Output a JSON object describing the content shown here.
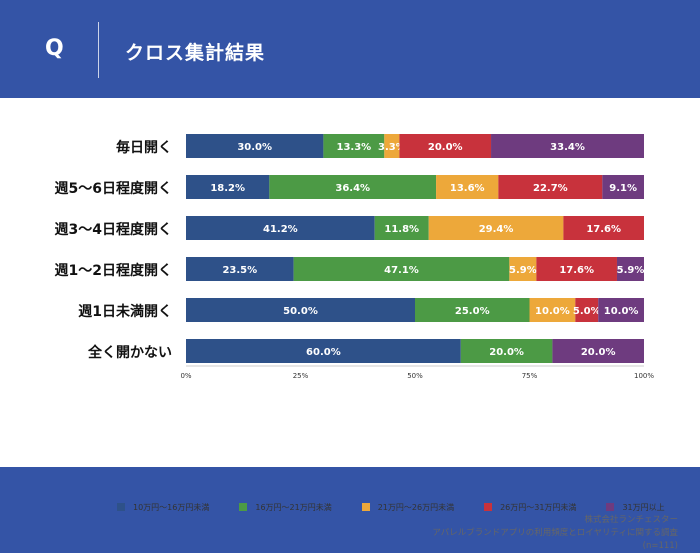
{
  "header": {
    "q_mark": "Q",
    "title": "クロス集計結果"
  },
  "footer": {
    "credit_lines": [
      "株式会社ランチェスター",
      "アパレルブランドアプリの利用頻度とロイヤリティに関する調査",
      "(n=111)"
    ]
  },
  "chart_data": {
    "type": "bar",
    "orientation": "horizontal",
    "stacked": true,
    "categories": [
      "毎日開く",
      "週5〜6日程度開く",
      "週3〜4日程度開く",
      "週1〜2日程度開く",
      "週1日未満開く",
      "全く開かない"
    ],
    "series": [
      {
        "name": "10万円〜16万円未満",
        "color": "#2e5189",
        "values": [
          30.0,
          18.2,
          41.2,
          23.5,
          50.0,
          60.0
        ]
      },
      {
        "name": "16万円〜21万円未満",
        "color": "#4c9a45",
        "values": [
          13.3,
          36.4,
          11.8,
          47.1,
          25.0,
          20.0
        ]
      },
      {
        "name": "21万円〜26万円未満",
        "color": "#eda83a",
        "values": [
          3.3,
          13.6,
          29.4,
          5.9,
          10.0,
          0
        ]
      },
      {
        "name": "26万円〜31万円未満",
        "color": "#c8323c",
        "values": [
          20.0,
          22.7,
          17.6,
          17.6,
          5.0,
          0
        ]
      },
      {
        "name": "31万円以上",
        "color": "#6e3b7f",
        "values": [
          33.4,
          9.1,
          0,
          5.9,
          10.0,
          20.0
        ]
      }
    ],
    "x_ticks": [
      "0%",
      "25%",
      "50%",
      "75%",
      "100%"
    ],
    "xlim": [
      0,
      100
    ],
    "value_format": "percent_1dp",
    "grid": false,
    "legend_position": "bottom"
  }
}
